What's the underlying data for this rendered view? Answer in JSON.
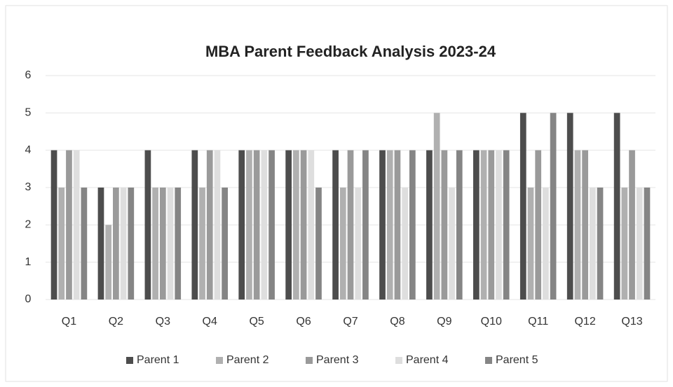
{
  "chart_data": {
    "type": "bar",
    "title": "MBA  Parent Feedback Analysis 2023-24",
    "categories": [
      "Q1",
      "Q2",
      "Q3",
      "Q4",
      "Q5",
      "Q6",
      "Q7",
      "Q8",
      "Q9",
      "Q10",
      "Q11",
      "Q12",
      "Q13"
    ],
    "series": [
      {
        "name": "Parent 1",
        "color": "#4d4d4d",
        "values": [
          4,
          3,
          4,
          4,
          4,
          4,
          4,
          4,
          4,
          4,
          5,
          5,
          5
        ]
      },
      {
        "name": "Parent 2",
        "color": "#b0b0b0",
        "values": [
          3,
          2,
          3,
          3,
          4,
          4,
          3,
          4,
          5,
          4,
          3,
          4,
          3
        ]
      },
      {
        "name": "Parent 3",
        "color": "#9a9a9a",
        "values": [
          4,
          3,
          3,
          4,
          4,
          4,
          4,
          4,
          4,
          4,
          4,
          4,
          4
        ]
      },
      {
        "name": "Parent 4",
        "color": "#dedede",
        "values": [
          4,
          3,
          3,
          4,
          4,
          4,
          3,
          3,
          3,
          4,
          3,
          3,
          3
        ]
      },
      {
        "name": "Parent 5",
        "color": "#858585",
        "values": [
          3,
          3,
          3,
          3,
          4,
          3,
          4,
          4,
          4,
          4,
          5,
          3,
          3
        ]
      }
    ],
    "ylim": [
      0,
      6
    ],
    "yticks": [
      0,
      1,
      2,
      3,
      4,
      5,
      6
    ],
    "grid": true,
    "legend": "bottom"
  }
}
